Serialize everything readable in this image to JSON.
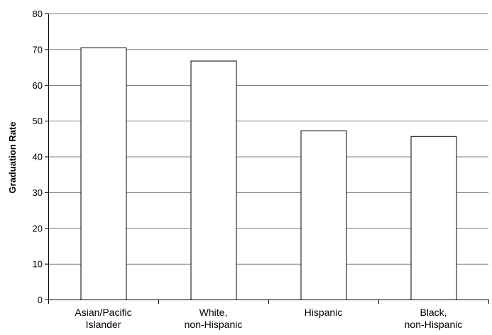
{
  "chart_data": {
    "type": "bar",
    "title": "",
    "xlabel": "",
    "ylabel": "Graduation Rate",
    "ylim": [
      0,
      80
    ],
    "yticks": [
      0,
      10,
      20,
      30,
      40,
      50,
      60,
      70,
      80
    ],
    "grid": true,
    "categories": [
      [
        "Asian/Pacific",
        "Islander"
      ],
      [
        "White,",
        "non-Hispanic"
      ],
      [
        "Hispanic"
      ],
      [
        "Black,",
        "non-Hispanic"
      ]
    ],
    "values": [
      70.5,
      66.8,
      47.3,
      45.7
    ],
    "colors": {
      "bar_fill": "#ffffff",
      "bar_stroke": "#000000",
      "grid": "#000000"
    }
  }
}
